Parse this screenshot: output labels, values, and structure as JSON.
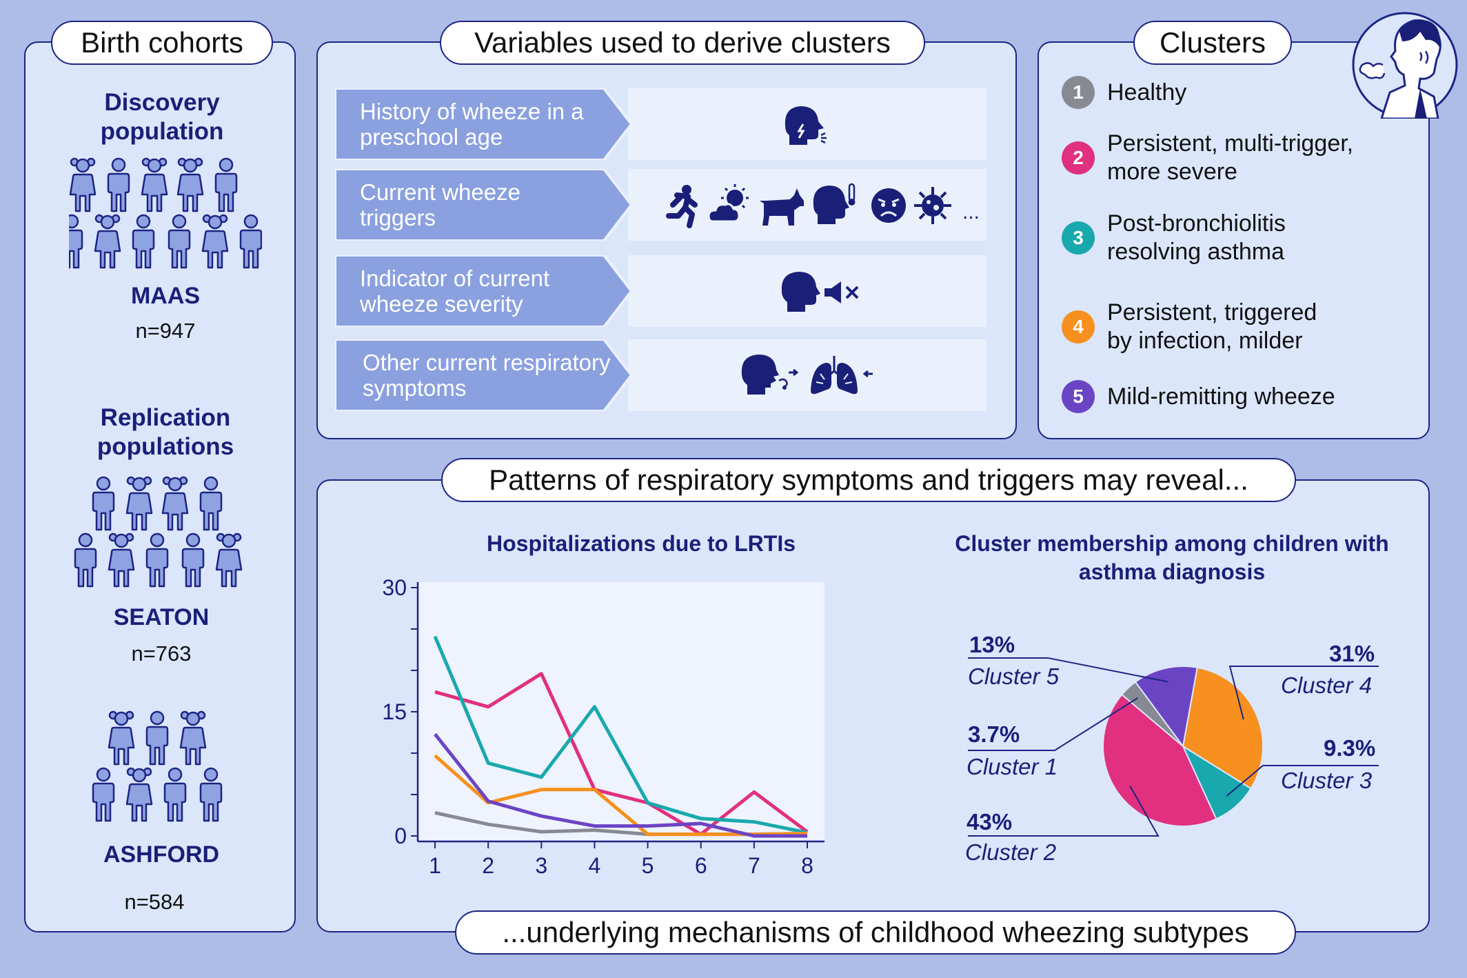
{
  "birth_cohorts": {
    "title": "Birth cohorts",
    "discovery_label": "Discovery population",
    "replication_label": "Replication populations",
    "cohorts": [
      {
        "name": "MAAS",
        "n": "n=947"
      },
      {
        "name": "SEATON",
        "n": "n=763"
      },
      {
        "name": "ASHFORD",
        "n": "n=584"
      }
    ]
  },
  "variables": {
    "title": "Variables used to derive clusters",
    "rows": [
      {
        "label": "History of wheeze in a preschool age",
        "icons": [
          "wheezing-head-icon"
        ]
      },
      {
        "label": "Current wheeze triggers",
        "icons": [
          "running-person-icon",
          "weather-icon",
          "dog-icon",
          "fever-head-icon",
          "angry-face-icon",
          "virus-icon"
        ],
        "more": "..."
      },
      {
        "label": "Indicator of current wheeze severity",
        "icons": [
          "head-icon",
          "muted-speaker-icon"
        ]
      },
      {
        "label": "Other current respiratory symptoms",
        "icons": [
          "coughing-head-icon",
          "lungs-icon"
        ]
      }
    ],
    "arrow_color": "#8aa0df"
  },
  "clusters": {
    "title": "Clusters",
    "items": [
      {
        "num": "1",
        "label": "Healthy",
        "color": "#878a92"
      },
      {
        "num": "2",
        "label": "Persistent, multi-trigger, more severe",
        "color": "#e0307f"
      },
      {
        "num": "3",
        "label": "Post-bronchiolitis resolving asthma",
        "color": "#19a8ad"
      },
      {
        "num": "4",
        "label": "Persistent, triggered by infection, milder",
        "color": "#f7901e"
      },
      {
        "num": "5",
        "label": "Mild-remitting wheeze",
        "color": "#6b44c4"
      }
    ],
    "avatar_icon": "coughing-man-icon"
  },
  "patterns": {
    "top_label": "Patterns of respiratory symptoms and triggers may reveal...",
    "bottom_label": "...underlying mechanisms of childhood wheezing subtypes"
  },
  "chart_data": [
    {
      "type": "line",
      "title": "Hospitalizations due to LRTIs",
      "x": [
        1,
        2,
        3,
        4,
        5,
        6,
        7,
        8
      ],
      "yticks": [
        "0",
        "15",
        "30"
      ],
      "ylim": [
        0,
        30
      ],
      "series": [
        {
          "color": "#878a92",
          "values": [
            2.8,
            1.4,
            0.5,
            0.7,
            0.2,
            0.2,
            0.2,
            0.3
          ]
        },
        {
          "color": "#e0307f",
          "values": [
            17.4,
            15.6,
            19.6,
            5.6,
            4.0,
            0.2,
            5.3,
            0.5
          ]
        },
        {
          "color": "#19a8ad",
          "values": [
            24.1,
            8.8,
            7.1,
            15.6,
            4.0,
            2.1,
            1.7,
            0.4
          ]
        },
        {
          "color": "#f7901e",
          "values": [
            9.7,
            4.0,
            5.6,
            5.6,
            0.2,
            0.2,
            0.2,
            0.3
          ]
        },
        {
          "color": "#6b44c4",
          "values": [
            12.3,
            4.2,
            2.4,
            1.2,
            1.2,
            1.5,
            0.0,
            0.0
          ]
        }
      ]
    },
    {
      "type": "pie",
      "title": "Cluster membership among children with asthma diagnosis",
      "slices": [
        {
          "name": "Cluster 4",
          "pct": "31%",
          "value": 31,
          "color": "#f7901e"
        },
        {
          "name": "Cluster 3",
          "pct": "9.3%",
          "value": 9.3,
          "color": "#19a8ad"
        },
        {
          "name": "Cluster 2",
          "pct": "43%",
          "value": 43,
          "color": "#e0307f"
        },
        {
          "name": "Cluster 1",
          "pct": "3.7%",
          "value": 3.7,
          "color": "#878a92"
        },
        {
          "name": "Cluster 5",
          "pct": "13%",
          "value": 13,
          "color": "#6b44c4"
        }
      ]
    }
  ]
}
